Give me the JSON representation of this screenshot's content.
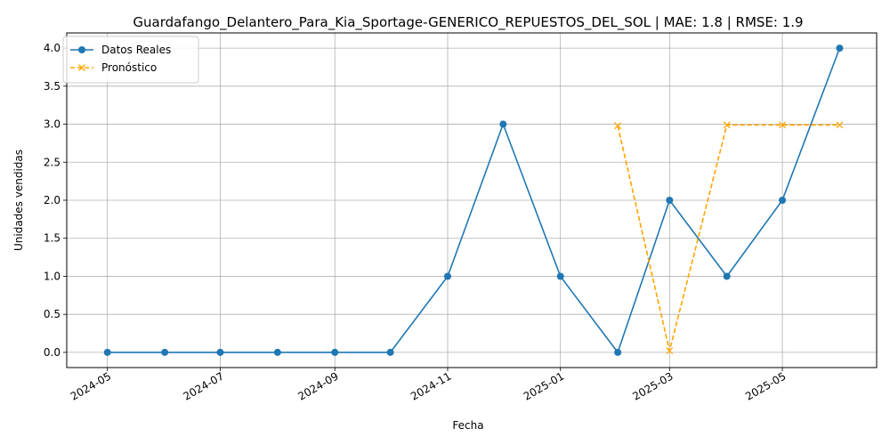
{
  "chart_data": {
    "type": "line",
    "title": "Guardafango_Delantero_Para_Kia_Sportage-GENERICO_REPUESTOS_DEL_SOL | MAE: 1.8 | RMSE: 1.9",
    "xlabel": "Fecha",
    "ylabel": "Unidades vendidas",
    "x_ticks": [
      "2024-05",
      "2024-07",
      "2024-09",
      "2024-11",
      "2025-01",
      "2025-03",
      "2025-05"
    ],
    "y_ticks": [
      "0.0",
      "0.5",
      "1.0",
      "1.5",
      "2.0",
      "2.5",
      "3.0",
      "3.5",
      "4.0"
    ],
    "xlim": [
      "2024-04-09",
      "2025-06-21"
    ],
    "ylim": [
      -0.2,
      4.2
    ],
    "grid": true,
    "legend_position": "top-left",
    "series": [
      {
        "name": "Datos Reales",
        "color": "#1f77b4",
        "style": "solid",
        "marker": "circle",
        "x": [
          "2024-05-01",
          "2024-06-01",
          "2024-07-01",
          "2024-08-01",
          "2024-09-01",
          "2024-10-01",
          "2024-11-01",
          "2024-12-01",
          "2025-01-01",
          "2025-02-01",
          "2025-03-01",
          "2025-04-01",
          "2025-05-01",
          "2025-06-01"
        ],
        "values": [
          0,
          0,
          0,
          0,
          0,
          0,
          1,
          3,
          1,
          0,
          2,
          1,
          2,
          4
        ]
      },
      {
        "name": "Pronóstico",
        "color": "#ffa500",
        "style": "dashed",
        "marker": "x",
        "x": [
          "2025-02-01",
          "2025-03-01",
          "2025-04-01",
          "2025-05-01",
          "2025-06-01"
        ],
        "values": [
          2.98,
          0.02,
          2.99,
          2.99,
          2.99
        ]
      }
    ]
  }
}
